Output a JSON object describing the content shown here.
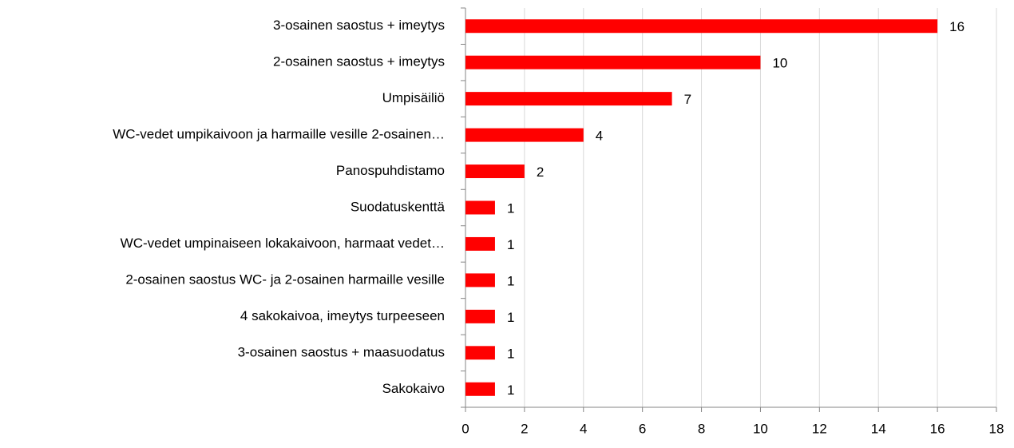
{
  "chart_data": {
    "type": "bar",
    "orientation": "horizontal",
    "categories": [
      "3-osainen saostus + imeytys",
      "2-osainen saostus + imeytys",
      "Umpisäiliö",
      "WC-vedet umpikaivoon ja harmaille vesille 2-osainen…",
      "Panospuhdistamo",
      "Suodatuskenttä",
      "WC-vedet umpinaiseen lokakaivoon, harmaat vedet…",
      "2-osainen saostus WC- ja 2-osainen harmaille vesille",
      "4 sakokaivoa, imeytys turpeeseen",
      "3-osainen saostus + maasuodatus",
      "Sakokaivo"
    ],
    "values": [
      16,
      10,
      7,
      4,
      2,
      1,
      1,
      1,
      1,
      1,
      1
    ],
    "color": "#ff0000",
    "xlim": [
      0,
      18
    ],
    "xticks": [
      0,
      2,
      4,
      6,
      8,
      10,
      12,
      14,
      16,
      18
    ],
    "grid": true
  }
}
